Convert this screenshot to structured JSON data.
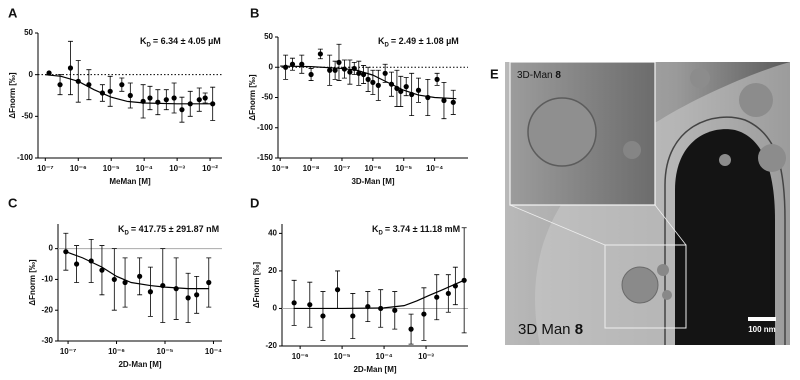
{
  "chart_data": [
    {
      "type": "scatter",
      "panel_label": "A",
      "x_label": "MeMan [M]",
      "y_label": "ΔFnorm [‰]",
      "kd": {
        "symbol": "K",
        "subscript": "D",
        "text": "= 6.34 ± 4.05 µM"
      },
      "xscale": "log",
      "xlim": [
        6e-08,
        0.023
      ],
      "ylim": [
        -100,
        50
      ],
      "xticks": [
        {
          "value": 1e-07,
          "label": "10⁻⁷"
        },
        {
          "value": 1e-06,
          "label": "10⁻⁶"
        },
        {
          "value": 1e-05,
          "label": "10⁻⁵"
        },
        {
          "value": 0.0001,
          "label": "10⁻⁴"
        },
        {
          "value": 0.001,
          "label": "10⁻³"
        },
        {
          "value": 0.01,
          "label": "10⁻²"
        }
      ],
      "yticks": [
        -100,
        -50,
        0,
        50
      ],
      "reference_line": {
        "value": 0,
        "style": "dotted"
      },
      "color": "#000000",
      "points": {
        "x": [
          1.3e-07,
          2.8e-07,
          5.8e-07,
          1e-06,
          2.1e-06,
          5.4e-06,
          9.3e-06,
          2.1e-05,
          3.8e-05,
          9.3e-05,
          0.00015,
          0.00026,
          0.00047,
          0.00081,
          0.0014,
          0.0025,
          0.0047,
          0.0071,
          0.012
        ],
        "values": [
          2,
          -12,
          8,
          -8,
          -12,
          -22,
          -20,
          -12,
          -25,
          -32,
          -28,
          -33,
          -30,
          -28,
          -42,
          -35,
          -30,
          -28,
          -35
        ],
        "errors": [
          0,
          12,
          32,
          25,
          18,
          10,
          18,
          8,
          15,
          20,
          14,
          15,
          12,
          18,
          15,
          15,
          14,
          6,
          20
        ]
      },
      "fit": {
        "x": [
          1e-07,
          3e-07,
          1e-06,
          3e-06,
          1e-05,
          3e-05,
          0.0001,
          0.001,
          0.012
        ],
        "values": [
          0,
          -2,
          -8,
          -18,
          -27,
          -32,
          -34,
          -35,
          -35
        ]
      }
    },
    {
      "type": "scatter",
      "panel_label": "B",
      "x_label": "3D-Man [M]",
      "y_label": "ΔFnorm [‰]",
      "kd": {
        "symbol": "K",
        "subscript": "D",
        "text": "= 2.49 ± 1.08 µM"
      },
      "xscale": "log",
      "xlim": [
        8.5e-10,
        0.0012
      ],
      "ylim": [
        -150,
        50
      ],
      "xticks": [
        {
          "value": 1e-09,
          "label": "10⁻⁹"
        },
        {
          "value": 1e-08,
          "label": "10⁻⁸"
        },
        {
          "value": 1e-07,
          "label": "10⁻⁷"
        },
        {
          "value": 1e-06,
          "label": "10⁻⁶"
        },
        {
          "value": 1e-05,
          "label": "10⁻⁵"
        },
        {
          "value": 0.0001,
          "label": "10⁻⁴"
        }
      ],
      "yticks": [
        -150,
        -100,
        -50,
        0,
        50
      ],
      "reference_line": {
        "value": 0,
        "style": "dotted"
      },
      "color": "#000000",
      "points": {
        "x": [
          1.5e-09,
          2.5e-09,
          5e-09,
          1e-08,
          2e-08,
          4e-08,
          6e-08,
          8e-08,
          1.2e-07,
          1.8e-07,
          2.5e-07,
          3.5e-07,
          5e-07,
          7e-07,
          1e-06,
          1.5e-06,
          2.5e-06,
          4e-06,
          6e-06,
          8e-06,
          1.2e-05,
          1.8e-05,
          3e-05,
          6e-05,
          0.00012,
          0.0002,
          0.0004
        ],
        "values": [
          0,
          5,
          5,
          -12,
          22,
          -5,
          -5,
          8,
          -3,
          -8,
          -2,
          -10,
          -12,
          -20,
          -25,
          -30,
          -10,
          -28,
          -35,
          -40,
          -32,
          -45,
          -38,
          -50,
          -20,
          -55,
          -58
        ],
        "errors": [
          20,
          10,
          15,
          10,
          8,
          25,
          15,
          30,
          15,
          20,
          10,
          20,
          15,
          20,
          20,
          25,
          15,
          20,
          30,
          25,
          15,
          35,
          20,
          30,
          10,
          30,
          20
        ]
      },
      "fit": {
        "x": [
          1e-09,
          1e-08,
          1e-07,
          3e-07,
          1e-06,
          3e-06,
          1e-05,
          3e-05,
          0.0001,
          0.0005
        ],
        "values": [
          2,
          1,
          -2,
          -5,
          -13,
          -25,
          -38,
          -46,
          -50,
          -52
        ]
      }
    },
    {
      "type": "scatter",
      "panel_label": "C",
      "x_label": "2D-Man [M]",
      "y_label": "ΔFnorm [‰]",
      "kd": {
        "symbol": "K",
        "subscript": "D",
        "text": "= 417.75 ± 291.87 nM"
      },
      "xscale": "log",
      "xlim": [
        6.2e-08,
        0.00015
      ],
      "ylim": [
        -30,
        8
      ],
      "xticks": [
        {
          "value": 1e-07,
          "label": "10⁻⁷"
        },
        {
          "value": 1e-06,
          "label": "10⁻⁶"
        },
        {
          "value": 1e-05,
          "label": "10⁻⁵"
        },
        {
          "value": 0.0001,
          "label": "10⁻⁴"
        }
      ],
      "yticks": [
        -30,
        -20,
        -10,
        0
      ],
      "reference_line": {
        "value": 0,
        "style": "solid"
      },
      "color": "#000000",
      "points": {
        "x": [
          9e-08,
          1.5e-07,
          3e-07,
          5e-07,
          9e-07,
          1.5e-06,
          3e-06,
          5e-06,
          9e-06,
          1.7e-05,
          3e-05,
          4.5e-05,
          8e-05
        ],
        "values": [
          -1,
          -5,
          -4,
          -7,
          -10,
          -11,
          -9,
          -14,
          -12,
          -13,
          -16,
          -15,
          -11
        ],
        "errors": [
          6,
          6,
          7,
          8,
          10,
          8,
          6,
          8,
          12,
          10,
          8,
          6,
          8
        ]
      },
      "fit": {
        "x": [
          9e-08,
          2e-07,
          5e-07,
          1e-06,
          2e-06,
          5e-06,
          1e-05,
          3e-05,
          8e-05
        ],
        "values": [
          -1,
          -3,
          -6,
          -9,
          -11,
          -12,
          -12.5,
          -13,
          -13
        ]
      }
    },
    {
      "type": "scatter",
      "panel_label": "D",
      "x_label": "2D-Man [M]",
      "y_label": "ΔFnorm [‰]",
      "kd": {
        "symbol": "K",
        "subscript": "D",
        "text": "= 3.74 ± 11.18 mM"
      },
      "xscale": "log",
      "xlim": [
        3.7e-07,
        0.01
      ],
      "ylim": [
        -20,
        45
      ],
      "xticks": [
        {
          "value": 1e-06,
          "label": "10⁻⁶"
        },
        {
          "value": 1e-05,
          "label": "10⁻⁵"
        },
        {
          "value": 0.0001,
          "label": "10⁻⁴"
        },
        {
          "value": 0.001,
          "label": "10⁻³"
        }
      ],
      "yticks": [
        -20,
        0,
        20,
        40
      ],
      "reference_line": {
        "value": 0,
        "style": "solid"
      },
      "color": "#000000",
      "points": {
        "x": [
          7.2e-07,
          1.7e-06,
          3.5e-06,
          7.8e-06,
          1.8e-05,
          4.1e-05,
          8.3e-05,
          0.00018,
          0.00044,
          0.00089,
          0.0018,
          0.0034,
          0.005,
          0.0081
        ],
        "values": [
          3,
          2,
          -4,
          10,
          -4,
          1,
          0,
          -1,
          -11,
          -3,
          6,
          8,
          12,
          15
        ],
        "errors": [
          12,
          12,
          13,
          10,
          12,
          8,
          10,
          10,
          8,
          14,
          12,
          10,
          10,
          28
        ]
      },
      "fit": {
        "x": [
          7e-07,
          1e-05,
          0.0001,
          0.0003,
          0.0006,
          0.0012,
          0.0025,
          0.005,
          0.0081
        ],
        "values": [
          0,
          0,
          0.3,
          1.5,
          4,
          7,
          10,
          13,
          15
        ]
      }
    }
  ],
  "image_panel": {
    "label": "E",
    "inset_label": "3D-Man",
    "inset_number": "8",
    "caption": "3D Man",
    "caption_number": "8",
    "scale_bar": "100 nm"
  }
}
